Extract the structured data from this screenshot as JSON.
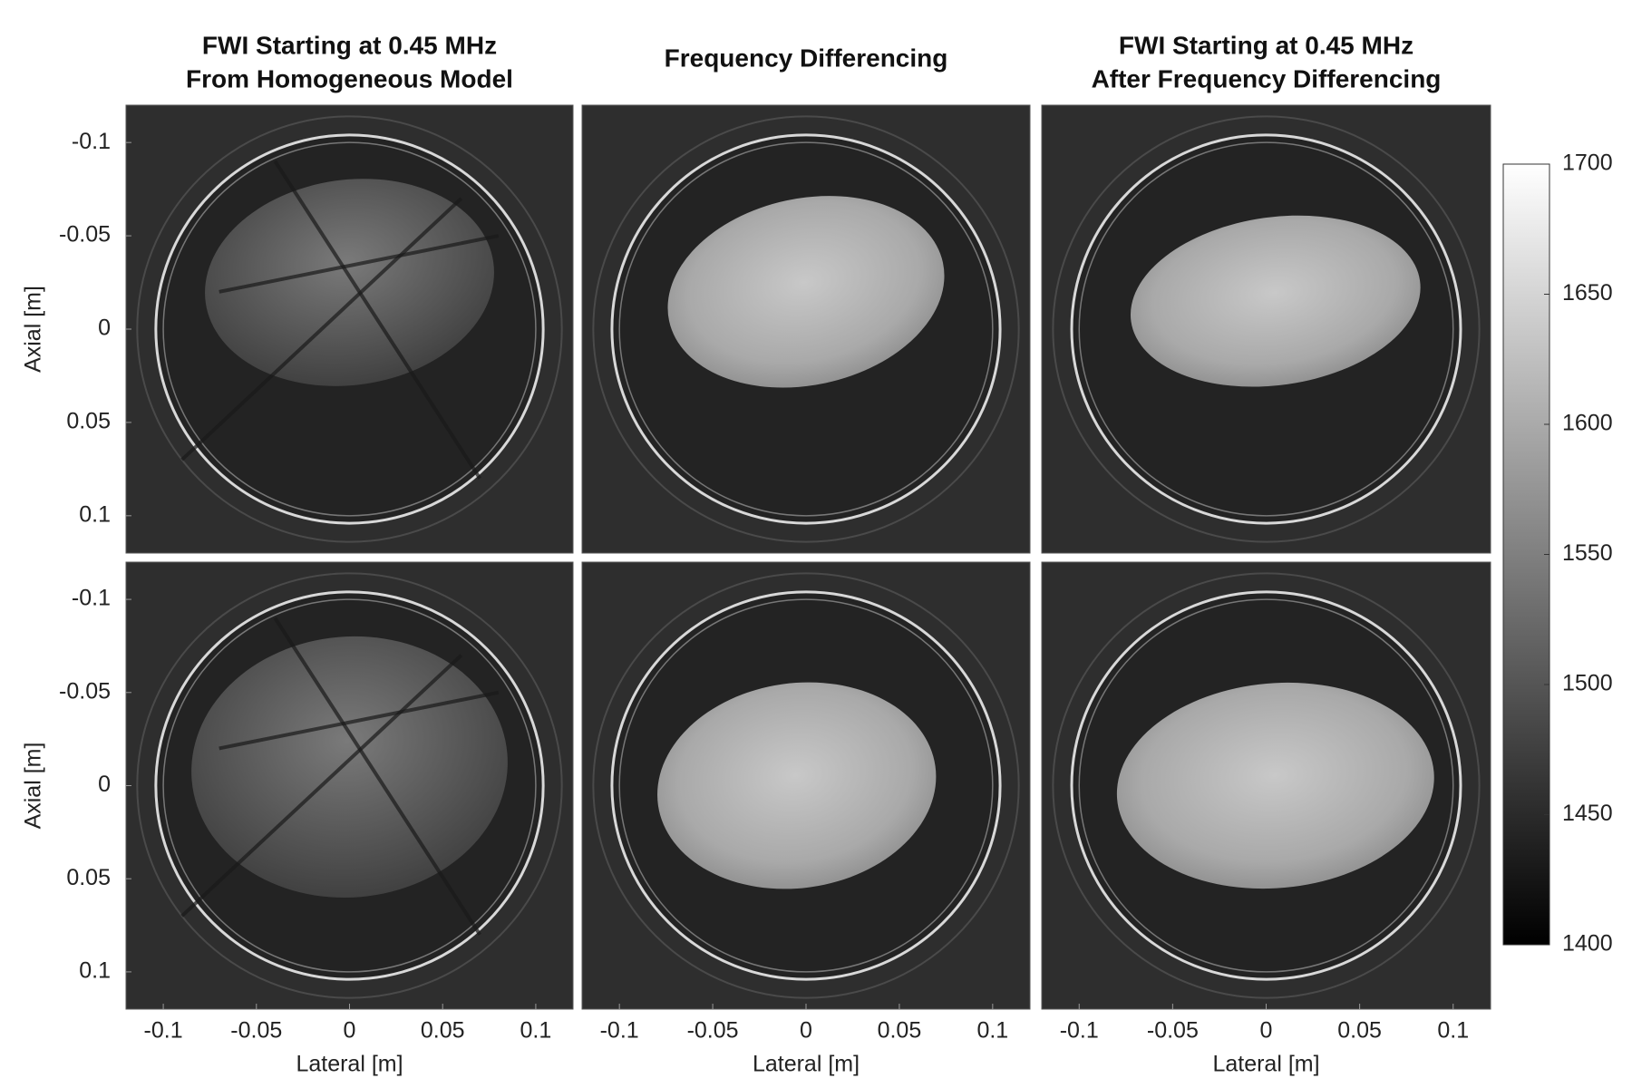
{
  "chart_data": [
    {
      "type": "image",
      "title": [
        "FWI Starting at 0.45 MHz",
        "From Homogeneous Model"
      ],
      "ylabel": "Axial [m]",
      "xlim": [
        -0.12,
        0.12
      ],
      "ylim": [
        -0.12,
        0.12
      ],
      "y_reversed": true,
      "yticks": [
        -0.1,
        -0.05,
        0,
        0.05,
        0.1
      ]
    },
    {
      "type": "image",
      "title": [
        "Frequency Differencing"
      ],
      "xlim": [
        -0.12,
        0.12
      ],
      "ylim": [
        -0.12,
        0.12
      ],
      "y_reversed": true
    },
    {
      "type": "image",
      "title": [
        "FWI Starting at 0.45 MHz",
        "After Frequency Differencing"
      ],
      "xlim": [
        -0.12,
        0.12
      ],
      "ylim": [
        -0.12,
        0.12
      ],
      "y_reversed": true
    },
    {
      "type": "image",
      "ylabel": "Axial [m]",
      "xlabel": "Lateral [m]",
      "xlim": [
        -0.12,
        0.12
      ],
      "ylim": [
        -0.12,
        0.12
      ],
      "y_reversed": true,
      "xticks": [
        -0.1,
        -0.05,
        0,
        0.05,
        0.1
      ],
      "yticks": [
        -0.1,
        -0.05,
        0,
        0.05,
        0.1
      ]
    },
    {
      "type": "image",
      "xlabel": "Lateral [m]",
      "xlim": [
        -0.12,
        0.12
      ],
      "ylim": [
        -0.12,
        0.12
      ],
      "y_reversed": true,
      "xticks": [
        -0.1,
        -0.05,
        0,
        0.05,
        0.1
      ]
    },
    {
      "type": "image",
      "xlabel": "Lateral [m]",
      "xlim": [
        -0.12,
        0.12
      ],
      "ylim": [
        -0.12,
        0.12
      ],
      "y_reversed": true,
      "xticks": [
        -0.1,
        -0.05,
        0,
        0.05,
        0.1
      ]
    },
    {
      "type": "colorbar",
      "ylim": [
        1400,
        1700
      ],
      "yticks": [
        1400,
        1450,
        1500,
        1550,
        1600,
        1650,
        1700
      ],
      "colormap": [
        "#000000",
        "#ffffff"
      ]
    }
  ]
}
